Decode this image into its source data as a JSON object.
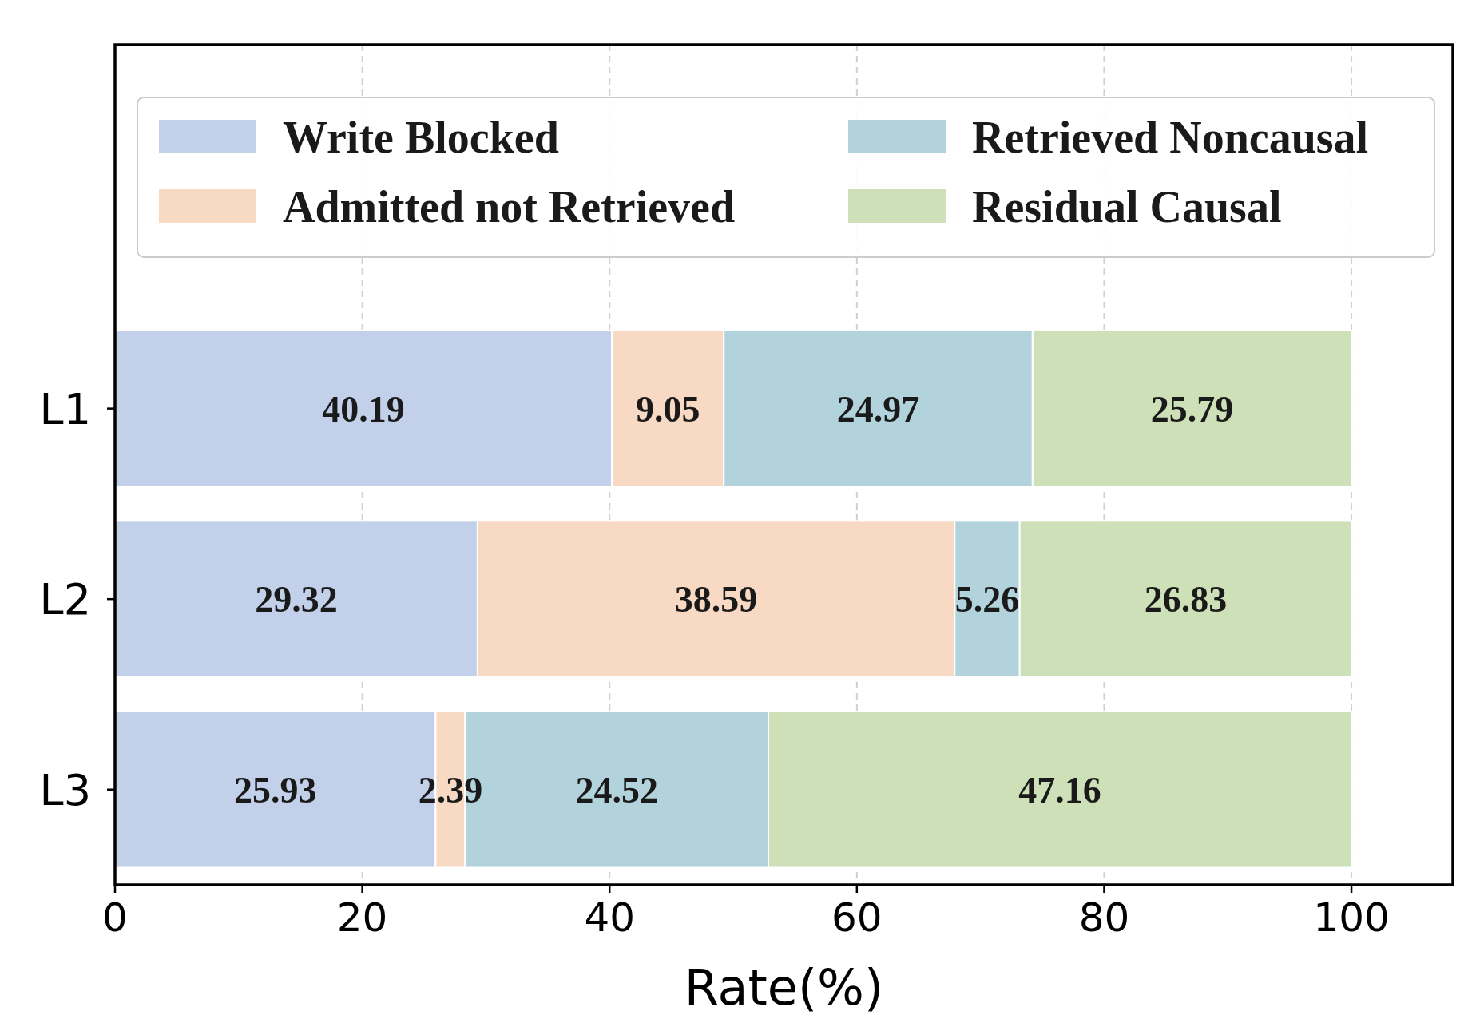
{
  "chart_data": {
    "type": "bar",
    "orientation": "horizontal",
    "stacked": true,
    "xlabel": "Rate(%)",
    "categories": [
      "L1",
      "L2",
      "L3"
    ],
    "series": [
      {
        "name": "Write Blocked",
        "color": "#c3d0ea",
        "values": [
          40.19,
          29.32,
          25.93
        ]
      },
      {
        "name": "Admitted not Retrieved",
        "color": "#f7d9c4",
        "values": [
          9.05,
          38.59,
          2.39
        ]
      },
      {
        "name": "Retrieved Noncausal",
        "color": "#b2d3dc",
        "values": [
          24.97,
          5.26,
          24.52
        ]
      },
      {
        "name": "Residual Causal",
        "color": "#cde0b8",
        "values": [
          25.79,
          26.83,
          47.16
        ]
      }
    ],
    "xlim": [
      0,
      108.2
    ],
    "xticks": [
      0,
      20,
      40,
      60,
      80,
      100
    ],
    "grid": "x",
    "legend": "top",
    "data_labels": true
  }
}
